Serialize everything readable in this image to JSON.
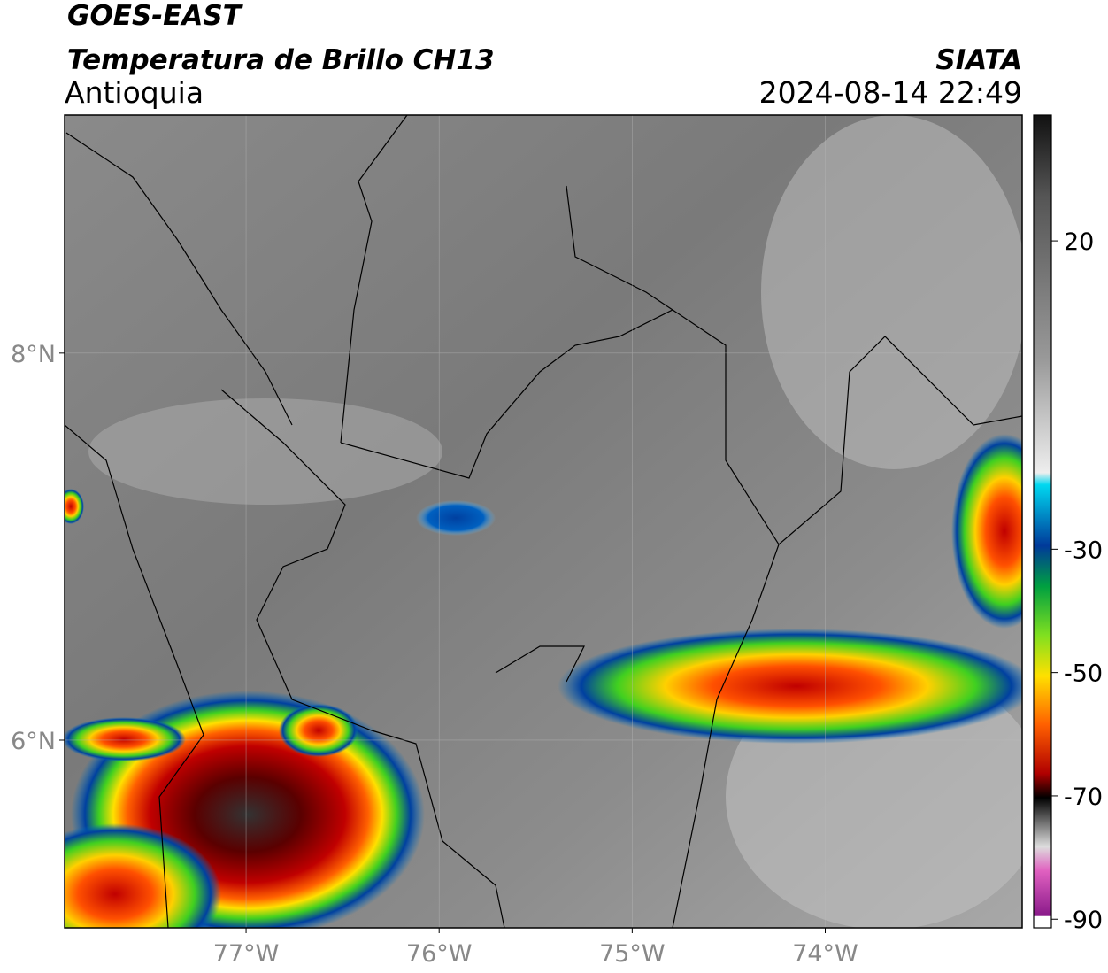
{
  "header": {
    "title": "GOES-EAST",
    "subtitle": "Temperatura de Brillo CH13",
    "region": "Antioquia",
    "source": "SIATA",
    "datetime": "2024-08-14 22:49"
  },
  "map": {
    "lonlim": [
      -77.94,
      -72.98
    ],
    "latlim": [
      5.03,
      9.23
    ],
    "lonticks": [
      {
        "value": -77,
        "label": "77°W"
      },
      {
        "value": -76,
        "label": "76°W"
      },
      {
        "value": -75,
        "label": "75°W"
      },
      {
        "value": -74,
        "label": "74°W"
      }
    ],
    "latticks": [
      {
        "value": 8,
        "label": "8°N"
      },
      {
        "value": 6,
        "label": "6°N"
      }
    ]
  },
  "colorbar": {
    "lim": [
      -91.4,
      40.4
    ],
    "ticks": [
      20,
      -30,
      -50,
      -70,
      -90
    ]
  }
}
